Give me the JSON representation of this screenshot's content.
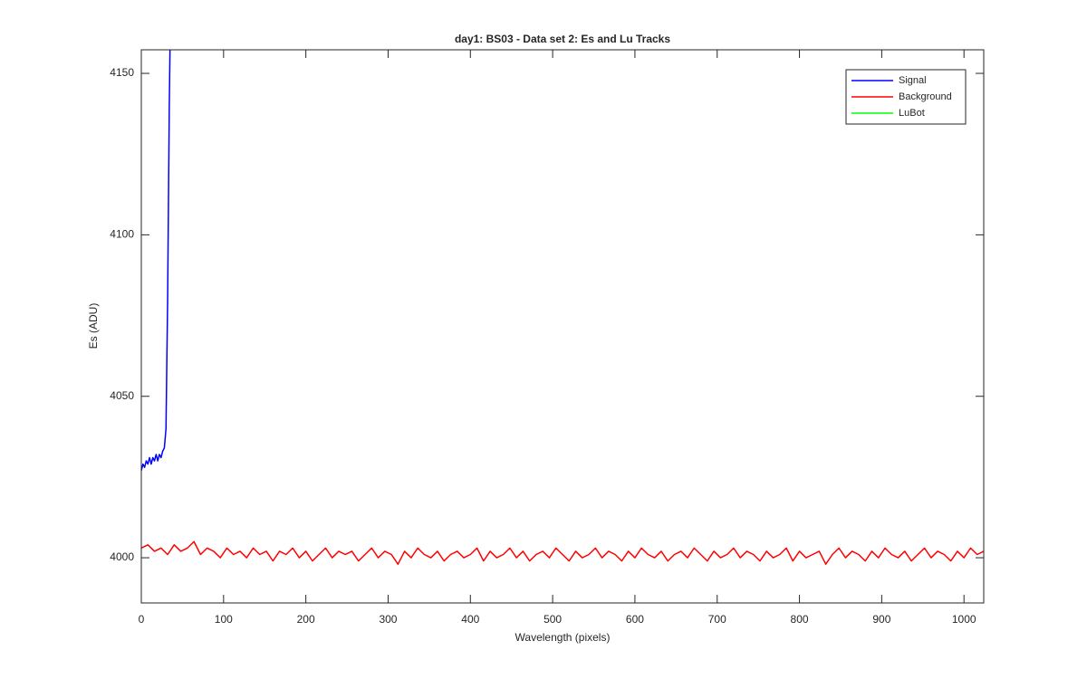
{
  "chart_data": {
    "type": "line",
    "title": "day1: BS03 - Data set 2: Es and Lu Tracks",
    "xlabel": "Wavelength (pixels)",
    "ylabel": "Es (ADU)",
    "xlim": [
      0,
      1024
    ],
    "ylim": [
      3986,
      4157.3
    ],
    "xticks": [
      0,
      100,
      200,
      300,
      400,
      500,
      600,
      700,
      800,
      900,
      1000
    ],
    "yticks": [
      4000,
      4050,
      4100,
      4150
    ],
    "legend": "top-right",
    "series": [
      {
        "name": "Signal",
        "color": "#0000ff",
        "x": [
          0,
          2,
          4,
          6,
          8,
          10,
          12,
          14,
          16,
          18,
          20,
          22,
          24,
          26,
          28,
          30,
          31,
          32,
          33,
          34,
          35
        ],
        "values": [
          4027,
          4029,
          4028,
          4030,
          4029,
          4031,
          4029,
          4031,
          4030,
          4032,
          4030,
          4032,
          4031,
          4033,
          4034,
          4040,
          4060,
          4080,
          4110,
          4140,
          4160
        ]
      },
      {
        "name": "Background",
        "color": "#ff0000",
        "x": [
          0,
          8,
          16,
          24,
          32,
          40,
          48,
          56,
          64,
          72,
          80,
          88,
          96,
          104,
          112,
          120,
          128,
          136,
          144,
          152,
          160,
          168,
          176,
          184,
          192,
          200,
          208,
          216,
          224,
          232,
          240,
          248,
          256,
          264,
          272,
          280,
          288,
          296,
          304,
          312,
          320,
          328,
          336,
          344,
          352,
          360,
          368,
          376,
          384,
          392,
          400,
          408,
          416,
          424,
          432,
          440,
          448,
          456,
          464,
          472,
          480,
          488,
          496,
          504,
          512,
          520,
          528,
          536,
          544,
          552,
          560,
          568,
          576,
          584,
          592,
          600,
          608,
          616,
          624,
          632,
          640,
          648,
          656,
          664,
          672,
          680,
          688,
          696,
          704,
          712,
          720,
          728,
          736,
          744,
          752,
          760,
          768,
          776,
          784,
          792,
          800,
          808,
          816,
          824,
          832,
          840,
          848,
          856,
          864,
          872,
          880,
          888,
          896,
          904,
          912,
          920,
          928,
          936,
          944,
          952,
          960,
          968,
          976,
          984,
          992,
          1000,
          1008,
          1016,
          1024
        ],
        "values": [
          4003,
          4004,
          4002,
          4003,
          4001,
          4004,
          4002,
          4003,
          4005,
          4001,
          4003,
          4002,
          4000,
          4003,
          4001,
          4002,
          4000,
          4003,
          4001,
          4002,
          3999,
          4002,
          4001,
          4003,
          4000,
          4002,
          3999,
          4001,
          4003,
          4000,
          4002,
          4001,
          4002,
          3999,
          4001,
          4003,
          4000,
          4002,
          4001,
          3998,
          4002,
          4000,
          4003,
          4001,
          4000,
          4002,
          3999,
          4001,
          4002,
          4000,
          4001,
          4003,
          3999,
          4002,
          4000,
          4001,
          4003,
          4000,
          4002,
          3999,
          4001,
          4002,
          4000,
          4003,
          4001,
          3999,
          4002,
          4000,
          4001,
          4003,
          4000,
          4002,
          4001,
          3999,
          4002,
          4000,
          4003,
          4001,
          4000,
          4002,
          3999,
          4001,
          4002,
          4000,
          4003,
          4001,
          3999,
          4002,
          4000,
          4001,
          4003,
          4000,
          4002,
          4001,
          3999,
          4002,
          4000,
          4001,
          4003,
          3999,
          4002,
          4000,
          4001,
          4002,
          3998,
          4001,
          4003,
          4000,
          4002,
          4001,
          3999,
          4002,
          4000,
          4003,
          4001,
          4000,
          4002,
          3999,
          4001,
          4003,
          4000,
          4002,
          4001,
          3999,
          4002,
          4000,
          4003,
          4001,
          4002
        ]
      },
      {
        "name": "LuBot",
        "color": "#00ff00",
        "x": [],
        "values": []
      }
    ]
  }
}
